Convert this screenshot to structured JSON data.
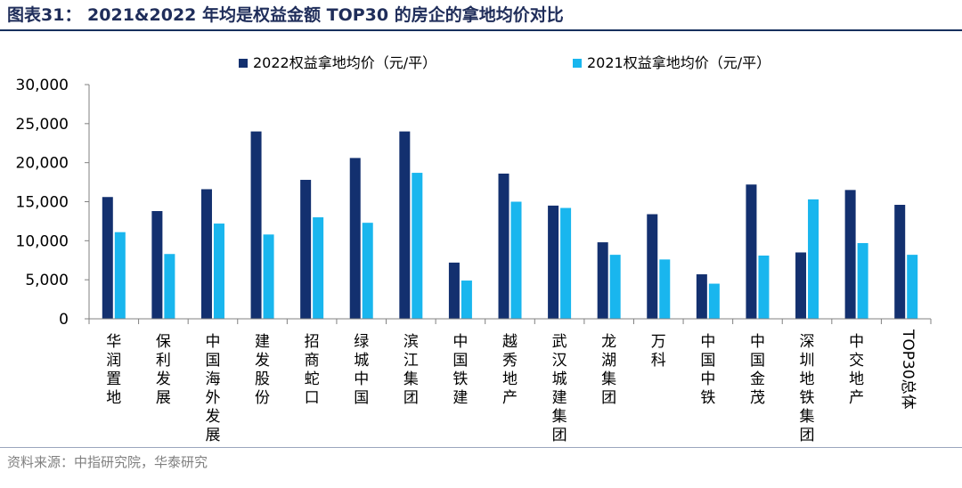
{
  "figure": {
    "title": "图表31：  2021&2022 年均是权益金额 TOP30 的房企的拿地均价对比",
    "source": "资料来源：中指研究院，华泰研究"
  },
  "colors": {
    "series_2022": "#13306f",
    "series_2021": "#19b6ee",
    "title": "#1f2d5a",
    "axis": "#808080"
  },
  "chart_data": {
    "type": "bar",
    "categories": [
      "华润置地",
      "保利发展",
      "中国海外发展",
      "建发股份",
      "招商蛇口",
      "绿城中国",
      "滨江集团",
      "中国铁建",
      "越秀地产",
      "武汉城建集团",
      "龙湖集团",
      "万科",
      "中国中铁",
      "中国金茂",
      "深圳地铁集团",
      "中交地产",
      "TOP30总体"
    ],
    "series": [
      {
        "name": "2022权益拿地均价（元/平）",
        "values": [
          15600,
          13800,
          16600,
          24000,
          17800,
          20600,
          24000,
          7200,
          18600,
          14500,
          9800,
          13400,
          5700,
          17200,
          8500,
          16500,
          14600
        ]
      },
      {
        "name": "2021权益拿地均价（元/平）",
        "values": [
          11100,
          8300,
          12200,
          10800,
          13000,
          12300,
          18700,
          4900,
          15000,
          14200,
          8200,
          7600,
          4500,
          8100,
          15300,
          9700,
          8200
        ]
      }
    ],
    "yticks": [
      "30,000",
      "25,000",
      "20,000",
      "15,000",
      "10,000",
      "5,000",
      "0"
    ],
    "ylim": [
      0,
      30000
    ],
    "legend_position": "top",
    "grid": false
  }
}
